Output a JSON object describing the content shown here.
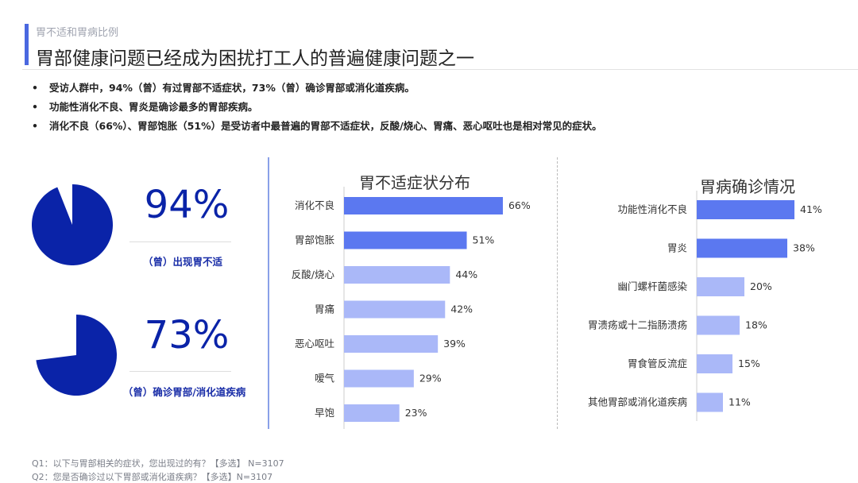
{
  "header": {
    "eyebrow": "胃不适和胃病比例",
    "title": "胃部健康问题已经成为困扰打工人的普遍健康问题之一"
  },
  "bullets": [
    "受访人群中，94%（曾）有过胃部不适症状，73%（曾）确诊胃部或消化道疾病。",
    "功能性消化不良、胃炎是确诊最多的胃部疾病。",
    "消化不良（66%）、胃部饱胀（51%）是受访者中最普遍的胃部不适症状，反酸/烧心、胃痛、恶心呕吐也是相对常见的症状。"
  ],
  "kpis": [
    {
      "value_label": "94%",
      "value": 94,
      "caption": "（曾）出现胃不适"
    },
    {
      "value_label": "73%",
      "value": 73,
      "caption": "（曾）确诊胃部/消化道疾病"
    }
  ],
  "colors": {
    "pie": "#0a23a8",
    "bar_top": "#5b78f0",
    "bar_rest": "#aab8f8",
    "accent": "#4a68e0"
  },
  "chart_data": [
    {
      "type": "bar",
      "orientation": "horizontal",
      "title": "胃不适症状分布",
      "categories": [
        "消化不良",
        "胃部饱胀",
        "反酸/烧心",
        "胃痛",
        "恶心呕吐",
        "嗳气",
        "早饱"
      ],
      "values": [
        66,
        51,
        44,
        42,
        39,
        29,
        23
      ],
      "unit": "%",
      "highlight_top": 2
    },
    {
      "type": "bar",
      "orientation": "horizontal",
      "title": "胃病确诊情况",
      "categories": [
        "功能性消化不良",
        "胃炎",
        "幽门螺杆菌感染",
        "胃溃疡或十二指肠溃疡",
        "胃食管反流症",
        "其他胃部或消化道疾病"
      ],
      "values": [
        41,
        38,
        20,
        18,
        15,
        11
      ],
      "unit": "%",
      "highlight_top": 2
    }
  ],
  "footnotes": [
    "Q1：以下与胃部相关的症状，您出现过的有？【多选】 N=3107",
    "Q2：您是否确诊过以下胃部或消化道疾病？【多选】N=3107"
  ]
}
